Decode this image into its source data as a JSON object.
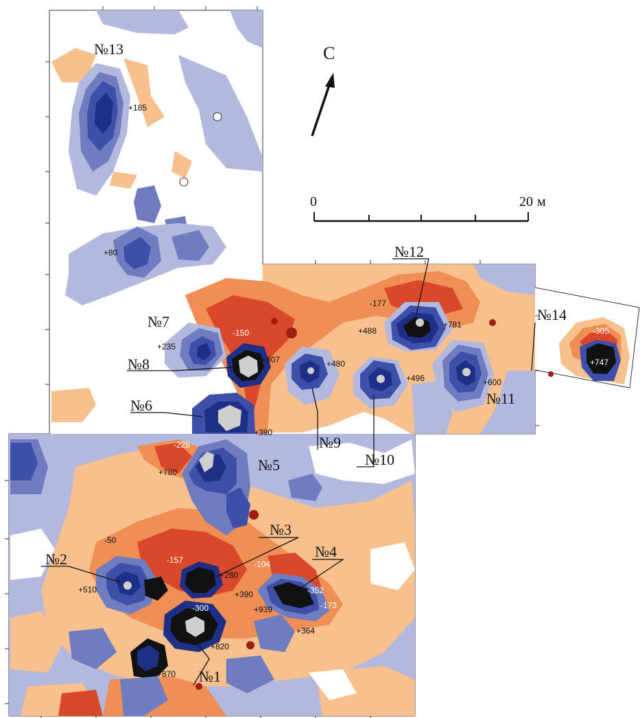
{
  "colors": {
    "deep_blue": "#1f2f86",
    "blue": "#3d4fa8",
    "mid_blue": "#6f7cc0",
    "light_blue": "#b3b8df",
    "pale_orange": "#f7c08c",
    "orange": "#ef8e55",
    "red_orange": "#d9482a",
    "dark_red": "#9e1e12",
    "core_gray": "#cfcfcf",
    "core_dark": "#111111"
  },
  "north_arrow": {
    "label": "С"
  },
  "scale_bar": {
    "start_label": "0",
    "end_label": "20",
    "unit": "м"
  },
  "anomaly_labels": {
    "n1": "№1",
    "n2": "№2",
    "n3": "№3",
    "n4": "№4",
    "n5": "№5",
    "n6": "№6",
    "n7": "№7",
    "n8": "№8",
    "n9": "№9",
    "n10": "№10",
    "n11": "№11",
    "n12": "№12",
    "n13": "№13",
    "n14": "№14"
  },
  "values": {
    "v185": "+185",
    "v80": "+80",
    "v235": "+235",
    "vm150": "-150",
    "v807": "+807",
    "v480": "+480",
    "vm177": "-177",
    "v488": "+488",
    "v781": "+781",
    "v496": "+496",
    "v600": "+600",
    "vm305": "-305",
    "v747": "+747",
    "v380": "+380",
    "vm228": "-228",
    "v780": "+780",
    "vm50": "-50",
    "v510": "+510",
    "vm157": "-157",
    "v280": "+280",
    "vm104": "-104",
    "v390": "+390",
    "vm352": "-352",
    "vm173": "-173",
    "v939": "+939",
    "vm300": "-300",
    "v364": "+364",
    "v820": "+820",
    "v870": "+870"
  }
}
